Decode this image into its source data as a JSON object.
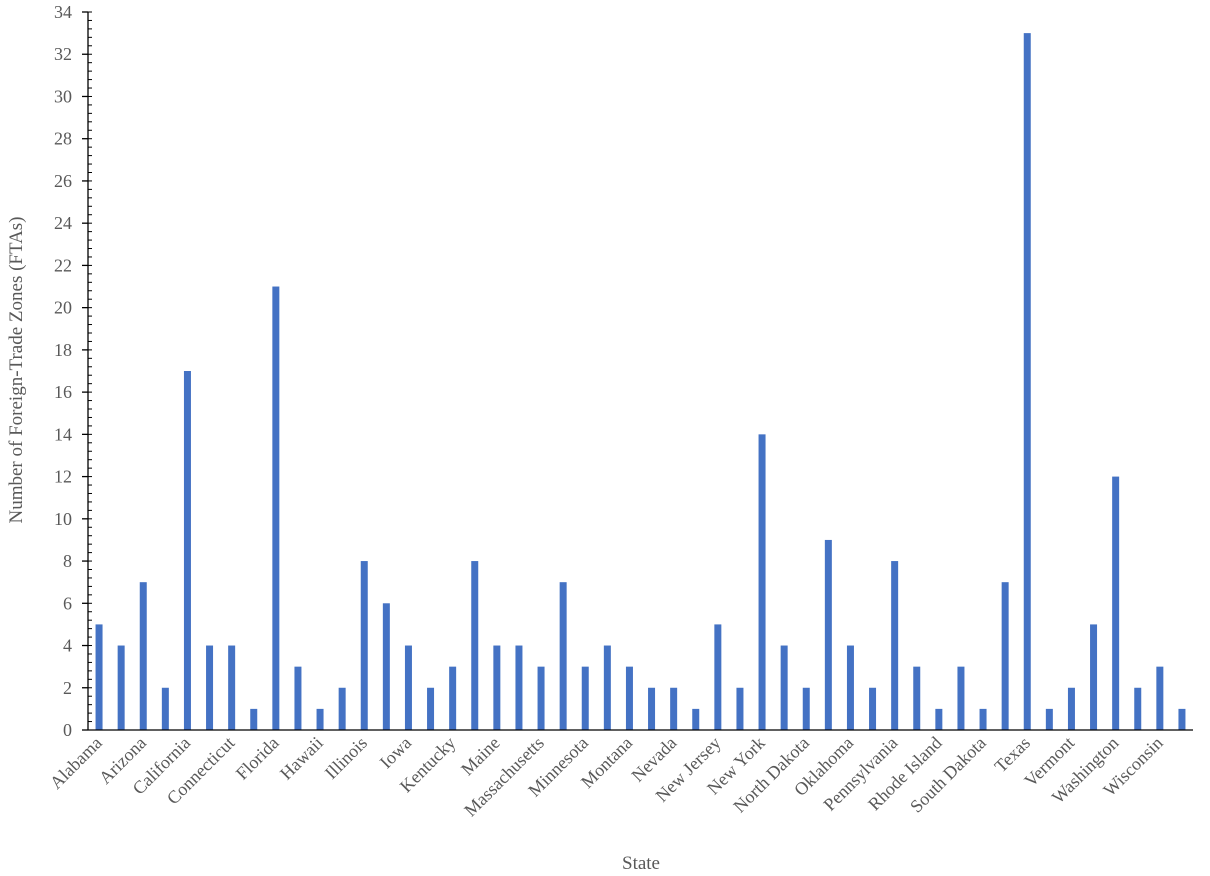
{
  "chart_data": {
    "type": "bar",
    "title": "",
    "xlabel": "State",
    "ylabel": "Number of Foreign-Trade Zones (FTAs)",
    "ylim": [
      0,
      34
    ],
    "y_ticks": [
      0,
      2,
      4,
      6,
      8,
      10,
      12,
      14,
      16,
      18,
      20,
      22,
      24,
      26,
      28,
      30,
      32,
      34
    ],
    "grid": false,
    "legend": "none",
    "bar_color": "#4472C4",
    "categories": [
      "Alabama",
      "",
      "Arizona",
      "",
      "California",
      "",
      "Connecticut",
      "",
      "Florida",
      "",
      "Hawaii",
      "",
      "Illinois",
      "",
      "Iowa",
      "",
      "Kentucky",
      "",
      "Maine",
      "",
      "Massachusetts",
      "",
      "Minnesota",
      "",
      "Montana",
      "",
      "Nevada",
      "",
      "New Jersey",
      "",
      "New York",
      "",
      "North Dakota",
      "",
      "Oklahoma",
      "",
      "Pennsylvania",
      "",
      "Rhode Island",
      "",
      "South Dakota",
      "",
      "Texas",
      "",
      "Vermont",
      "",
      "Washington",
      "",
      "Wisconsin",
      ""
    ],
    "values": [
      5,
      4,
      7,
      2,
      17,
      4,
      4,
      1,
      21,
      3,
      1,
      2,
      8,
      6,
      4,
      2,
      3,
      8,
      4,
      4,
      3,
      7,
      3,
      4,
      3,
      2,
      2,
      1,
      5,
      2,
      14,
      4,
      2,
      9,
      4,
      2,
      8,
      3,
      1,
      3,
      1,
      7,
      33,
      1,
      2,
      5,
      12,
      2,
      3,
      1
    ]
  }
}
